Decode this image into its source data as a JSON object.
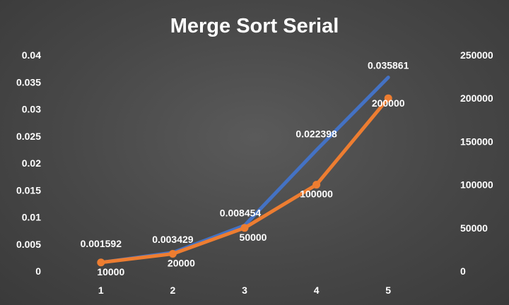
{
  "chart_data": {
    "type": "line",
    "title": "Merge Sort Serial",
    "categories": [
      "1",
      "2",
      "3",
      "4",
      "5"
    ],
    "y_left": {
      "range": [
        0,
        0.04
      ],
      "ticks": [
        "0",
        "0.005",
        "0.01",
        "0.015",
        "0.02",
        "0.025",
        "0.03",
        "0.035",
        "0.04"
      ]
    },
    "y_right": {
      "range": [
        0,
        250000
      ],
      "ticks": [
        "0",
        "50000",
        "100000",
        "150000",
        "200000",
        "250000"
      ]
    },
    "grid": false,
    "legend": "none",
    "series": [
      {
        "axis": "left",
        "color": "#4472C4",
        "values": [
          0.001592,
          0.003429,
          0.008454,
          0.022398,
          0.035861
        ],
        "labels": [
          "0.001592",
          "0.003429",
          "0.008454",
          "0.022398",
          "0.035861"
        ]
      },
      {
        "axis": "right",
        "color": "#ED7D31",
        "values": [
          10000,
          20000,
          50000,
          100000,
          200000
        ],
        "labels": [
          "10000",
          "20000",
          "50000",
          "100000",
          "200000"
        ]
      }
    ]
  }
}
